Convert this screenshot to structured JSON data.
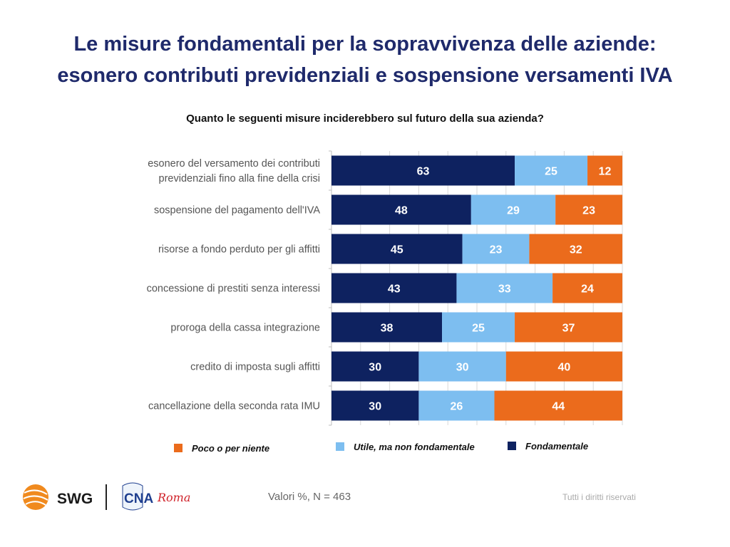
{
  "header": {
    "title_line1": "Le misure fondamentali per la sopravvivenza delle aziende:",
    "title_line2": "esonero contributi previdenziali e sospensione versamenti IVA"
  },
  "chart_data": {
    "type": "bar",
    "orientation": "horizontal",
    "stacked": true,
    "title": "Quanto le seguenti misure inciderebbero sul futuro della sua azienda?",
    "categories": [
      [
        "esonero del versamento dei contributi",
        "previdenziali fino alla fine della crisi"
      ],
      [
        "sospensione del pagamento dell'IVA"
      ],
      [
        "risorse a fondo perduto per gli affitti"
      ],
      [
        "concessione di prestiti senza interessi"
      ],
      [
        "proroga della cassa integrazione"
      ],
      [
        "credito di imposta sugli affitti"
      ],
      [
        "cancellazione della seconda rata IMU"
      ]
    ],
    "series": [
      {
        "name": "Fondamentale",
        "color": "#0e2260",
        "values": [
          63,
          48,
          45,
          43,
          38,
          30,
          30
        ]
      },
      {
        "name": "Utile, ma non fondamentale",
        "color": "#7dbef0",
        "values": [
          25,
          29,
          23,
          33,
          25,
          30,
          26
        ]
      },
      {
        "name": "Poco o per niente",
        "color": "#eb6b1c",
        "values": [
          12,
          23,
          32,
          24,
          37,
          40,
          44
        ]
      }
    ],
    "xlim": [
      0,
      100
    ],
    "grid": true,
    "legend_order": [
      "Poco o per niente",
      "Utile, ma non fondamentale",
      "Fondamentale"
    ],
    "legend_position": "bottom"
  },
  "footer": {
    "note": "Valori %, N = 463",
    "rights": "Tutti i diritti riservati"
  },
  "logos": {
    "swg": "SWG",
    "cna": "CNA",
    "roma": "Roma"
  }
}
